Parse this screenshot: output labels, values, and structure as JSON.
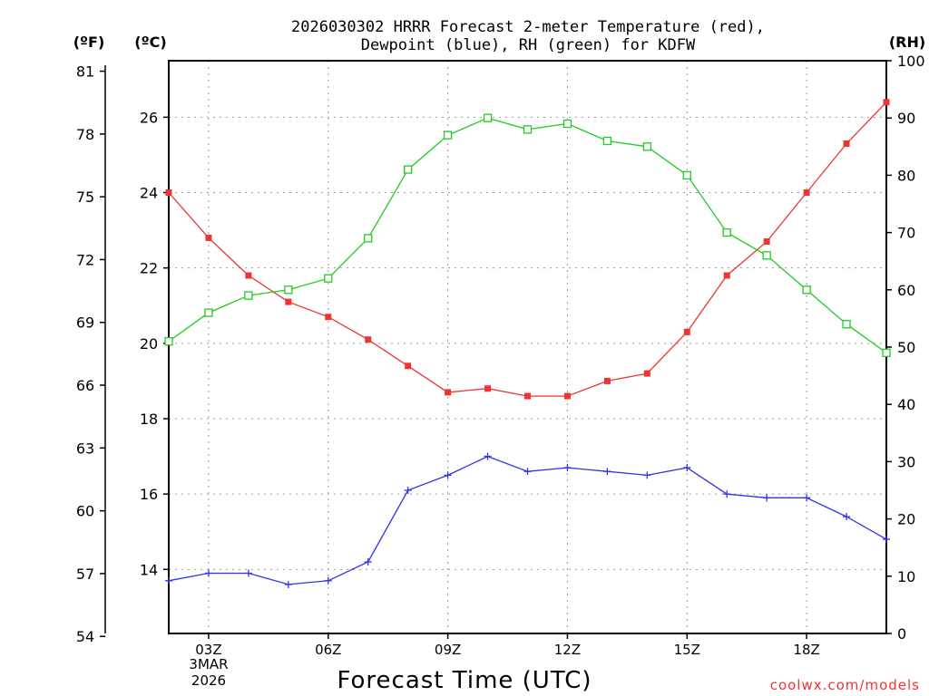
{
  "chart_data": {
    "type": "line",
    "title_line1": "2026030302 HRRR Forecast 2-meter Temperature (red),",
    "title_line2": "Dewpoint (blue), RH (green) for KDFW",
    "xlabel": "Forecast Time (UTC)",
    "x_hours": [
      2,
      3,
      4,
      5,
      6,
      7,
      8,
      9,
      10,
      11,
      12,
      13,
      14,
      15,
      16,
      17,
      18,
      19,
      20
    ],
    "x_ticks": [
      3,
      6,
      9,
      12,
      15,
      18
    ],
    "x_tick_labels": [
      "03Z",
      "06Z",
      "09Z",
      "12Z",
      "15Z",
      "18Z"
    ],
    "x_date_label": [
      "3MAR",
      "2026"
    ],
    "xlim": [
      2,
      20
    ],
    "left_axis_f": {
      "unit_label": "(ºF)",
      "ticks": [
        54,
        57,
        60,
        63,
        66,
        69,
        72,
        75,
        78,
        81
      ]
    },
    "left_axis_c": {
      "unit_label": "(ºC)",
      "ticks": [
        14,
        16,
        18,
        20,
        22,
        24,
        26
      ],
      "ylim": [
        12.3,
        27.5
      ]
    },
    "right_axis_rh": {
      "unit_label": "(RH)",
      "ticks": [
        0,
        10,
        20,
        30,
        40,
        50,
        60,
        70,
        80,
        90,
        100
      ],
      "ylim": [
        0,
        100
      ]
    },
    "series": [
      {
        "name": "Temperature",
        "axis": "c",
        "color": "#ee3333",
        "marker": "filled-square",
        "values": [
          24.0,
          22.8,
          21.8,
          21.1,
          20.7,
          20.1,
          19.4,
          18.7,
          18.8,
          18.6,
          18.6,
          19.0,
          19.2,
          20.3,
          21.8,
          22.7,
          24.0,
          25.3,
          26.4
        ]
      },
      {
        "name": "Dewpoint",
        "axis": "c",
        "color": "#3333ee",
        "marker": "plus",
        "values": [
          13.7,
          13.9,
          13.9,
          13.6,
          13.7,
          14.2,
          16.1,
          16.5,
          17.0,
          16.6,
          16.7,
          16.6,
          16.5,
          16.7,
          16.0,
          15.9,
          15.9,
          15.4,
          14.8
        ]
      },
      {
        "name": "RH",
        "axis": "rh",
        "color": "#22cc22",
        "marker": "open-square",
        "values": [
          51,
          56,
          59,
          60,
          62,
          69,
          81,
          87,
          90,
          88,
          89,
          86,
          85,
          80,
          70,
          66,
          60,
          54,
          49
        ]
      }
    ],
    "grid": true,
    "credit": "coolwx.com/models"
  }
}
